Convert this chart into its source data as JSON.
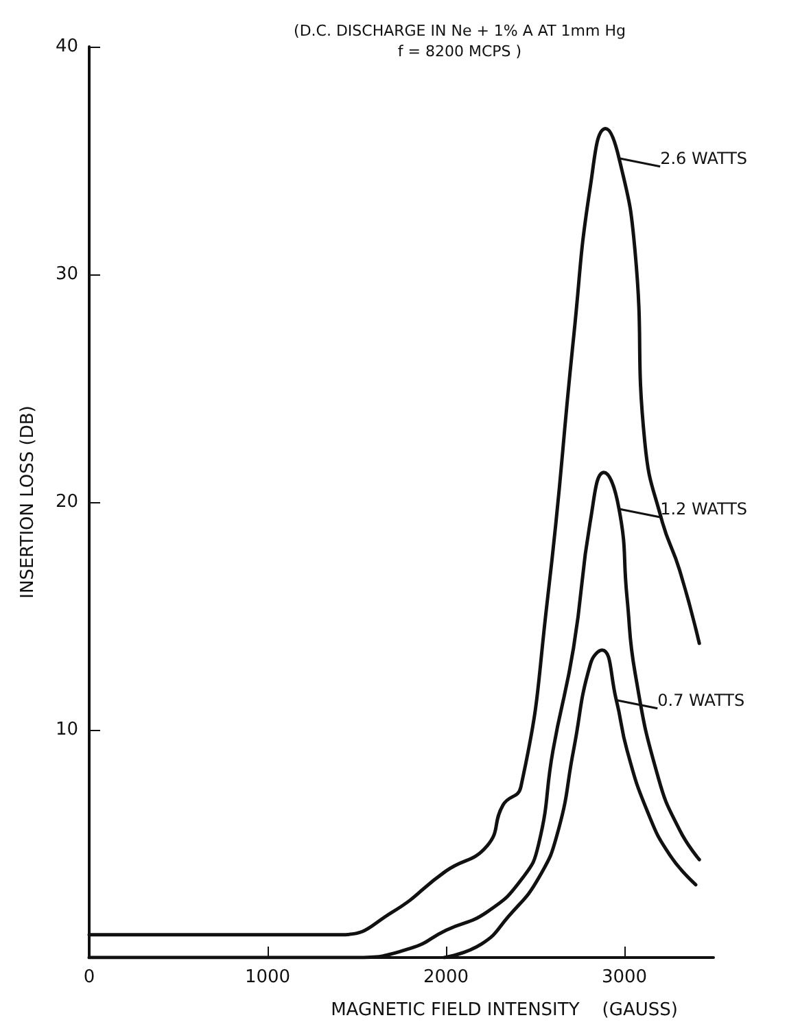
{
  "chart_data": {
    "type": "line",
    "title": "(D.C. DISCHARGE IN Ne + 1% A AT 1mm Hg",
    "subtitle": "f = 8200 MCPS )",
    "xlabel": "MAGNETIC FIELD INTENSITY    (GAUSS)",
    "ylabel": "INSERTION LOSS (DB)",
    "series": [
      {
        "name": "2.6 WATTS",
        "color": "#111111",
        "x": [
          0,
          1000,
          1410,
          1700,
          2000,
          2230,
          2320,
          2420,
          2570,
          2715,
          2810,
          2895,
          2970,
          3060,
          3115,
          3210,
          3310,
          3420
        ],
        "values": [
          1,
          1,
          1,
          2,
          3.8,
          4.9,
          6.7,
          7.5,
          15.8,
          27.2,
          33.9,
          36.4,
          35.1,
          31,
          22.6,
          19.2,
          17,
          13.8
        ]
      },
      {
        "name": "1.2 WATTS",
        "color": "#111111",
        "x": [
          0,
          1000,
          1490,
          1800,
          2000,
          2230,
          2430,
          2520,
          2600,
          2715,
          2810,
          2885,
          2970,
          3015,
          3060,
          3190,
          3310,
          3420
        ],
        "values": [
          0,
          0,
          0,
          0.4,
          1.2,
          2,
          3.5,
          5,
          9.1,
          13.6,
          19.2,
          21.3,
          19.7,
          15.8,
          12.5,
          7.9,
          5.6,
          4.3
        ]
      },
      {
        "name": "0.7 WATTS",
        "color": "#111111",
        "x": [
          1990,
          2200,
          2350,
          2520,
          2630,
          2715,
          2810,
          2875,
          2955,
          3015,
          3130,
          3255,
          3400
        ],
        "values": [
          0,
          0.6,
          1.8,
          3.5,
          5.6,
          9.1,
          12.9,
          13.5,
          11.3,
          9.1,
          6.4,
          4.5,
          3.2
        ]
      }
    ],
    "xlim": [
      0,
      3500
    ],
    "xticks": [
      0,
      1000,
      2000,
      3000
    ],
    "ylim": [
      0,
      40
    ],
    "yticks": [
      10,
      20,
      30,
      40
    ],
    "grid": false,
    "legend": "right",
    "marker": "none",
    "line_style": "solid"
  }
}
